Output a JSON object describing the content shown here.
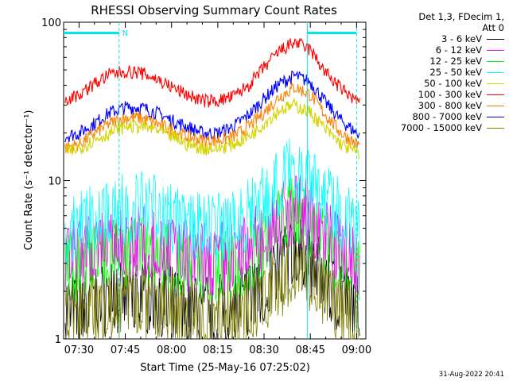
{
  "chart_data": {
    "type": "line",
    "title": "RHESSI Observing Summary Count Rates",
    "xlabel": "Start Time (25-May-16 07:25:02)",
    "ylabel": "Count Rate (s⁻¹ detector⁻¹)",
    "y_scale": "log",
    "ylim": [
      1,
      100
    ],
    "xlim": [
      "07:25",
      "09:03"
    ],
    "x_ticks": [
      "07:30",
      "07:45",
      "08:00",
      "08:15",
      "08:30",
      "08:45",
      "09:00"
    ],
    "y_ticks": [
      "1",
      "10",
      "100"
    ],
    "legend_header": [
      "Det 1,3, FDecim 1,",
      "Att 0"
    ],
    "legend_position": "right",
    "markers": {
      "flag_label": "N",
      "dashed_lines": [
        "07:43",
        "09:00"
      ],
      "solid_line": "08:44",
      "bars": [
        [
          "07:25",
          "07:43"
        ],
        [
          "08:44",
          "09:00"
        ]
      ]
    },
    "x": [
      "07:25",
      "07:30",
      "07:35",
      "07:40",
      "07:45",
      "07:50",
      "07:55",
      "08:00",
      "08:05",
      "08:10",
      "08:15",
      "08:20",
      "08:25",
      "08:30",
      "08:35",
      "08:40",
      "08:45",
      "08:50",
      "08:55",
      "09:00"
    ],
    "series": [
      {
        "name": "3 - 6 keV",
        "color": "#000000",
        "values": [
          1.6,
          1.7,
          1.8,
          1.9,
          2.0,
          2.0,
          1.9,
          1.8,
          1.7,
          1.6,
          1.6,
          1.7,
          1.9,
          2.3,
          3.0,
          3.8,
          3.3,
          2.4,
          1.9,
          1.6
        ]
      },
      {
        "name": "6 - 12 keV",
        "color": "#ff00ff",
        "values": [
          3.4,
          3.6,
          3.9,
          4.2,
          4.4,
          4.4,
          4.2,
          3.9,
          3.6,
          3.4,
          3.4,
          3.6,
          4.0,
          4.8,
          6.0,
          7.2,
          6.3,
          4.8,
          3.9,
          3.4
        ]
      },
      {
        "name": "12 - 25 keV",
        "color": "#00ff00",
        "values": [
          2.9,
          3.1,
          3.4,
          3.6,
          3.8,
          3.8,
          3.6,
          3.3,
          3.1,
          2.9,
          2.9,
          3.1,
          3.5,
          4.2,
          5.6,
          7.0,
          6.0,
          4.3,
          3.4,
          2.9
        ]
      },
      {
        "name": "25 - 50 keV",
        "color": "#00ffff",
        "values": [
          5.2,
          5.6,
          6.2,
          6.8,
          7.2,
          7.2,
          6.7,
          6.1,
          5.6,
          5.2,
          5.2,
          5.6,
          6.4,
          7.8,
          10.2,
          12.5,
          11.0,
          8.2,
          6.5,
          5.5
        ]
      },
      {
        "name": "50 - 100 keV",
        "color": "#d4d400",
        "values": [
          15,
          16,
          18,
          20,
          22,
          22,
          21,
          19,
          17,
          16,
          16,
          17,
          19,
          23,
          28,
          30,
          27,
          21,
          17,
          15
        ]
      },
      {
        "name": "100 - 300 keV",
        "color": "#ff0000",
        "values": [
          32,
          35,
          41,
          47,
          49,
          48,
          44,
          39,
          35,
          32,
          32,
          34,
          40,
          52,
          66,
          75,
          67,
          48,
          38,
          32
        ]
      },
      {
        "name": "300 - 800 keV",
        "color": "#ff8000",
        "values": [
          16,
          17,
          20,
          23,
          25,
          25,
          23,
          21,
          19,
          18,
          18,
          19,
          22,
          27,
          34,
          39,
          35,
          26,
          20,
          17
        ]
      },
      {
        "name": "800 - 7000 keV",
        "color": "#0000ff",
        "values": [
          19,
          20,
          23,
          27,
          29,
          29,
          27,
          24,
          22,
          20,
          20,
          22,
          26,
          33,
          41,
          46,
          42,
          31,
          24,
          20
        ]
      },
      {
        "name": "7000 - 15000 keV",
        "color": "#808000",
        "values": [
          1.4,
          1.5,
          1.6,
          1.7,
          1.8,
          1.8,
          1.7,
          1.6,
          1.5,
          1.4,
          1.4,
          1.5,
          1.6,
          1.8,
          2.4,
          3.1,
          2.7,
          2.0,
          1.6,
          1.4
        ]
      }
    ]
  },
  "footer_date": "31-Aug-2022 20:41"
}
